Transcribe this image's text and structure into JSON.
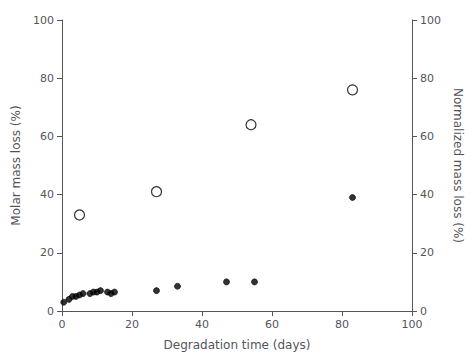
{
  "chart_data": {
    "type": "scatter",
    "xlabel": "Degradation time (days)",
    "ylabel": "Molar mass loss (%)",
    "y2label": "Normalized mass loss (%)",
    "xlim": [
      0,
      100
    ],
    "ylim": [
      0,
      100
    ],
    "y2lim": [
      0,
      100
    ],
    "xticks": [
      0,
      20,
      40,
      60,
      80,
      100
    ],
    "yticks": [
      0,
      20,
      40,
      60,
      80,
      100
    ],
    "y2ticks": [
      0,
      20,
      40,
      60,
      80,
      100
    ],
    "grid": false,
    "series": [
      {
        "color": "#000000",
        "marker": "open_circle",
        "x": [
          5,
          27,
          54,
          83
        ],
        "values": [
          33,
          41,
          64,
          76
        ]
      },
      {
        "color": "#000000",
        "marker": "circle",
        "x": [
          0.5,
          2,
          3,
          4,
          5,
          6,
          8,
          9,
          10,
          11,
          13,
          14,
          15,
          27,
          33,
          47,
          55,
          83
        ],
        "values": [
          3,
          4,
          5,
          5,
          5.5,
          6,
          6,
          6.5,
          6.5,
          7,
          6.5,
          6,
          6.5,
          7,
          8.5,
          10,
          10,
          39
        ]
      }
    ]
  }
}
